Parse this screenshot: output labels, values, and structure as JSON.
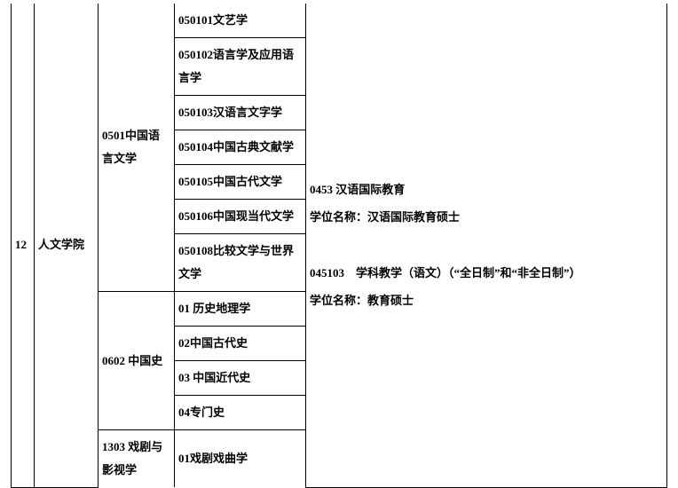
{
  "row_index": "12",
  "department": "人文学院",
  "disciplines": [
    {
      "code_label": "0501中国语言文学",
      "subjects": [
        "050101文艺学",
        "050102语言学及应用语言学",
        "050103汉语言文字学",
        "050104中国古典文献学",
        "050105中国古代文学",
        "050106中国现当代文学",
        "050108比较文学与世界文学"
      ]
    },
    {
      "code_label": "0602 中国史",
      "subjects": [
        "01 历史地理学",
        "02中国古代史",
        "03 中国近代史",
        "04专门史"
      ]
    },
    {
      "code_label": "1303 戏剧与影视学",
      "subjects": [
        "01戏剧戏曲学"
      ]
    }
  ],
  "right_col": {
    "line1": "0453 汉语国际教育",
    "line2": "学位名称：汉语国际教育硕士",
    "line3": "045103 学科教学（语文）（“全日制”和“非全日制”）",
    "line4": "学位名称：教育硕士"
  }
}
